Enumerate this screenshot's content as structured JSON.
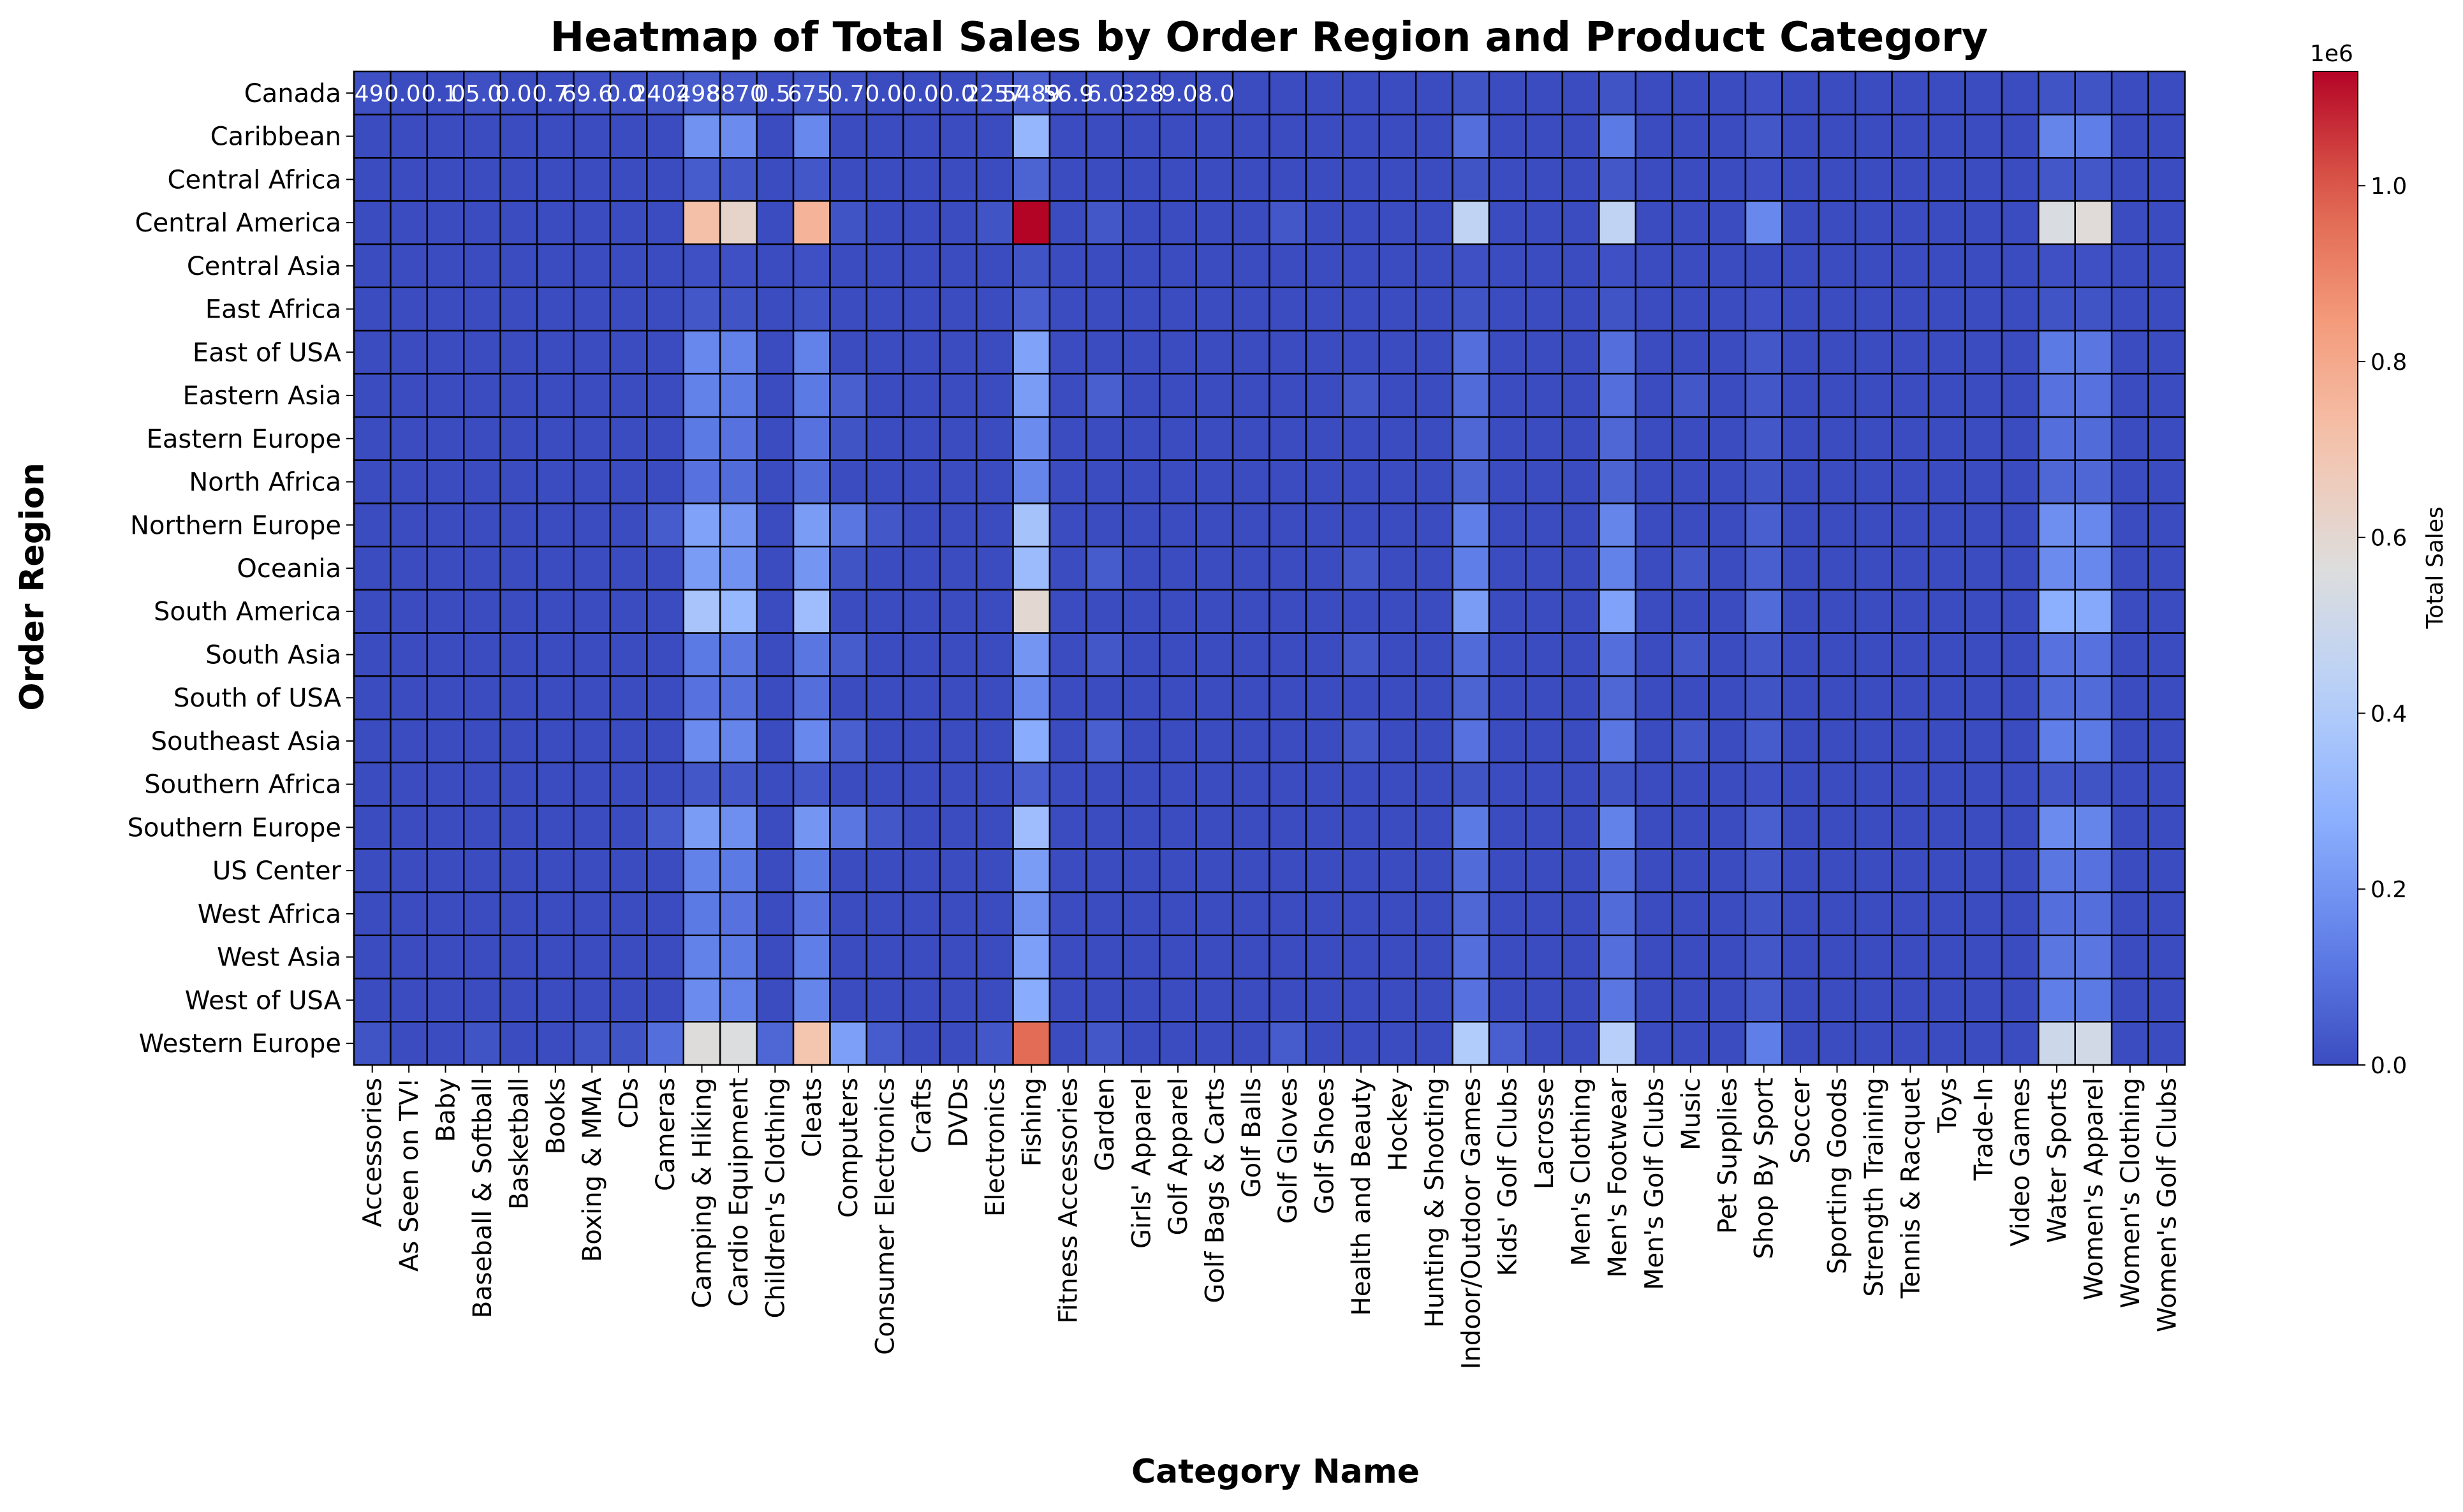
{
  "chart_data": {
    "type": "heatmap",
    "title": "Heatmap of Total Sales by Order Region and Product Category",
    "xlabel": "Category Name",
    "ylabel": "Order Region",
    "colorbar": {
      "label": "Total Sales",
      "offset_label": "1e6",
      "ticks": [
        "0.0",
        "0.2",
        "0.4",
        "0.6",
        "0.8",
        "1.0"
      ],
      "tick_values": [
        0,
        0.2,
        0.4,
        0.6,
        0.8,
        1.0
      ],
      "range": [
        0,
        1.13
      ],
      "colormap": "coolwarm"
    },
    "x_categories": [
      "Accessories",
      "As Seen on  TV!",
      "Baby",
      "Baseball & Softball",
      "Basketball",
      "Books",
      "Boxing & MMA",
      "CDs",
      "Cameras",
      "Camping & Hiking",
      "Cardio Equipment",
      "Children's Clothing",
      "Cleats",
      "Computers",
      "Consumer Electronics",
      "Crafts",
      "DVDs",
      "Electronics",
      "Fishing",
      "Fitness Accessories",
      "Garden",
      "Girls' Apparel",
      "Golf Apparel",
      "Golf Bags & Carts",
      "Golf Balls",
      "Golf Gloves",
      "Golf Shoes",
      "Health and Beauty",
      "Hockey",
      "Hunting & Shooting",
      "Indoor/Outdoor Games",
      "Kids' Golf Clubs",
      "Lacrosse",
      "Men's Clothing",
      "Men's Footwear",
      "Men's Golf Clubs",
      "Music",
      "Pet Supplies",
      "Shop By Sport",
      "Soccer",
      "Sporting Goods",
      "Strength Training",
      "Tennis & Racquet",
      "Toys",
      "Trade-In",
      "Video Games",
      "Water Sports",
      "Women's Apparel",
      "Women's Clothing",
      "Women's Golf Clubs"
    ],
    "y_categories": [
      "Canada",
      "Caribbean",
      "Central Africa",
      "Central America",
      "Central Asia",
      "East Africa",
      "East of USA",
      "Eastern Asia",
      "Eastern Europe",
      "North Africa",
      "Northern Europe",
      "Oceania",
      "South America",
      "South Asia",
      "South of  USA",
      "Southeast Asia",
      "Southern Africa",
      "Southern Europe",
      "US Center",
      "West Africa",
      "West Asia",
      "West of USA",
      "Western Europe"
    ],
    "annotations_row0": [
      ".49",
      "0.0",
      "0.1",
      "05.0",
      "0.0",
      "0.7",
      "69.6",
      "0.0",
      "2402",
      "498",
      "8870",
      "0.5",
      "675",
      "0.7",
      "0.0",
      "0.0",
      "0.0",
      "2257",
      "5489",
      "56.9",
      "6.0",
      "328",
      "9.0",
      "8.0"
    ],
    "values_millions": [
      [
        0.01,
        0.0,
        0.0,
        0.01,
        0.0,
        0.0,
        0.01,
        0.01,
        0.02,
        0.04,
        0.03,
        0.01,
        0.03,
        0.01,
        0.0,
        0.0,
        0.0,
        0.01,
        0.05,
        0.0,
        0.01,
        0.0,
        0.0,
        0.0,
        0.0,
        0.0,
        0.0,
        0.0,
        0.0,
        0.0,
        0.02,
        0.0,
        0.0,
        0.0,
        0.02,
        0.0,
        0.0,
        0.0,
        0.01,
        0.0,
        0.0,
        0.0,
        0.0,
        0.0,
        0.0,
        0.0,
        0.02,
        0.02,
        0.0,
        0.0
      ],
      [
        0.0,
        0.0,
        0.0,
        0.0,
        0.0,
        0.0,
        0.0,
        0.0,
        0.0,
        0.19,
        0.17,
        0.0,
        0.16,
        0.0,
        0.0,
        0.0,
        0.0,
        0.0,
        0.31,
        0.0,
        0.0,
        0.0,
        0.0,
        0.0,
        0.0,
        0.0,
        0.0,
        0.0,
        0.0,
        0.0,
        0.09,
        0.0,
        0.0,
        0.0,
        0.12,
        0.0,
        0.0,
        0.0,
        0.03,
        0.0,
        0.0,
        0.0,
        0.0,
        0.0,
        0.0,
        0.0,
        0.15,
        0.13,
        0.0,
        0.0
      ],
      [
        0.0,
        0.0,
        0.0,
        0.0,
        0.0,
        0.0,
        0.0,
        0.0,
        0.0,
        0.04,
        0.03,
        0.0,
        0.03,
        0.0,
        0.0,
        0.0,
        0.0,
        0.0,
        0.06,
        0.0,
        0.0,
        0.0,
        0.0,
        0.0,
        0.0,
        0.0,
        0.0,
        0.0,
        0.0,
        0.0,
        0.02,
        0.0,
        0.0,
        0.0,
        0.03,
        0.0,
        0.0,
        0.0,
        0.01,
        0.0,
        0.0,
        0.0,
        0.0,
        0.0,
        0.0,
        0.0,
        0.03,
        0.03,
        0.0,
        0.0
      ],
      [
        0.0,
        0.0,
        0.0,
        0.0,
        0.0,
        0.0,
        0.0,
        0.0,
        0.0,
        0.72,
        0.62,
        0.0,
        0.76,
        0.02,
        0.0,
        0.0,
        0.0,
        0.02,
        1.13,
        0.0,
        0.03,
        0.0,
        0.0,
        0.0,
        0.0,
        0.03,
        0.0,
        0.0,
        0.0,
        0.0,
        0.46,
        0.0,
        0.0,
        0.0,
        0.46,
        0.0,
        0.0,
        0.0,
        0.16,
        0.0,
        0.0,
        0.0,
        0.0,
        0.0,
        0.0,
        0.0,
        0.55,
        0.58,
        0.0,
        0.0
      ],
      [
        0.0,
        0.0,
        0.0,
        0.0,
        0.0,
        0.0,
        0.0,
        0.0,
        0.0,
        0.01,
        0.01,
        0.0,
        0.01,
        0.0,
        0.0,
        0.0,
        0.0,
        0.0,
        0.02,
        0.0,
        0.0,
        0.0,
        0.0,
        0.0,
        0.0,
        0.0,
        0.0,
        0.0,
        0.0,
        0.0,
        0.01,
        0.0,
        0.0,
        0.0,
        0.01,
        0.0,
        0.0,
        0.0,
        0.0,
        0.0,
        0.0,
        0.0,
        0.0,
        0.0,
        0.0,
        0.0,
        0.01,
        0.01,
        0.0,
        0.0
      ],
      [
        0.0,
        0.0,
        0.0,
        0.0,
        0.0,
        0.0,
        0.0,
        0.0,
        0.0,
        0.03,
        0.02,
        0.0,
        0.02,
        0.0,
        0.0,
        0.0,
        0.0,
        0.0,
        0.05,
        0.0,
        0.0,
        0.0,
        0.0,
        0.0,
        0.0,
        0.0,
        0.0,
        0.0,
        0.0,
        0.0,
        0.02,
        0.0,
        0.0,
        0.0,
        0.02,
        0.0,
        0.0,
        0.0,
        0.01,
        0.0,
        0.0,
        0.0,
        0.0,
        0.0,
        0.0,
        0.0,
        0.02,
        0.02,
        0.0,
        0.0
      ],
      [
        0.0,
        0.0,
        0.0,
        0.0,
        0.0,
        0.0,
        0.0,
        0.0,
        0.0,
        0.16,
        0.14,
        0.0,
        0.14,
        0.0,
        0.0,
        0.0,
        0.0,
        0.0,
        0.24,
        0.0,
        0.0,
        0.0,
        0.0,
        0.0,
        0.0,
        0.0,
        0.0,
        0.0,
        0.0,
        0.0,
        0.09,
        0.0,
        0.0,
        0.0,
        0.09,
        0.0,
        0.0,
        0.0,
        0.03,
        0.0,
        0.0,
        0.0,
        0.0,
        0.0,
        0.0,
        0.0,
        0.12,
        0.11,
        0.0,
        0.0
      ],
      [
        0.0,
        0.0,
        0.0,
        0.0,
        0.0,
        0.0,
        0.0,
        0.0,
        0.0,
        0.14,
        0.12,
        0.0,
        0.12,
        0.05,
        0.0,
        0.0,
        0.0,
        0.0,
        0.22,
        0.0,
        0.05,
        0.0,
        0.0,
        0.0,
        0.0,
        0.0,
        0.0,
        0.03,
        0.0,
        0.0,
        0.08,
        0.0,
        0.0,
        0.0,
        0.09,
        0.0,
        0.03,
        0.0,
        0.03,
        0.0,
        0.0,
        0.0,
        0.0,
        0.0,
        0.0,
        0.0,
        0.1,
        0.1,
        0.0,
        0.0
      ],
      [
        0.0,
        0.0,
        0.0,
        0.0,
        0.0,
        0.0,
        0.0,
        0.0,
        0.0,
        0.12,
        0.1,
        0.0,
        0.1,
        0.02,
        0.0,
        0.0,
        0.0,
        0.0,
        0.17,
        0.0,
        0.0,
        0.0,
        0.0,
        0.0,
        0.0,
        0.0,
        0.0,
        0.0,
        0.0,
        0.0,
        0.07,
        0.0,
        0.0,
        0.0,
        0.07,
        0.0,
        0.0,
        0.0,
        0.03,
        0.0,
        0.0,
        0.0,
        0.0,
        0.0,
        0.0,
        0.0,
        0.09,
        0.08,
        0.0,
        0.0
      ],
      [
        0.0,
        0.0,
        0.0,
        0.0,
        0.0,
        0.0,
        0.0,
        0.0,
        0.0,
        0.1,
        0.08,
        0.0,
        0.08,
        0.0,
        0.0,
        0.0,
        0.0,
        0.0,
        0.15,
        0.0,
        0.0,
        0.0,
        0.0,
        0.0,
        0.0,
        0.0,
        0.0,
        0.0,
        0.0,
        0.0,
        0.06,
        0.0,
        0.0,
        0.0,
        0.06,
        0.0,
        0.0,
        0.0,
        0.02,
        0.0,
        0.0,
        0.0,
        0.0,
        0.0,
        0.0,
        0.0,
        0.07,
        0.07,
        0.0,
        0.0
      ],
      [
        0.0,
        0.0,
        0.0,
        0.0,
        0.0,
        0.0,
        0.0,
        0.0,
        0.04,
        0.24,
        0.2,
        0.0,
        0.22,
        0.11,
        0.03,
        0.0,
        0.0,
        0.0,
        0.36,
        0.0,
        0.0,
        0.0,
        0.0,
        0.0,
        0.0,
        0.0,
        0.0,
        0.0,
        0.0,
        0.0,
        0.13,
        0.0,
        0.0,
        0.0,
        0.15,
        0.0,
        0.0,
        0.0,
        0.05,
        0.0,
        0.0,
        0.0,
        0.0,
        0.0,
        0.0,
        0.0,
        0.18,
        0.16,
        0.0,
        0.0
      ],
      [
        0.0,
        0.0,
        0.0,
        0.0,
        0.0,
        0.0,
        0.0,
        0.0,
        0.0,
        0.22,
        0.19,
        0.0,
        0.2,
        0.02,
        0.0,
        0.0,
        0.0,
        0.0,
        0.33,
        0.0,
        0.04,
        0.0,
        0.0,
        0.0,
        0.0,
        0.0,
        0.0,
        0.03,
        0.0,
        0.0,
        0.13,
        0.0,
        0.0,
        0.0,
        0.14,
        0.0,
        0.03,
        0.0,
        0.05,
        0.0,
        0.0,
        0.0,
        0.0,
        0.0,
        0.0,
        0.0,
        0.17,
        0.16,
        0.0,
        0.0
      ],
      [
        0.0,
        0.0,
        0.0,
        0.0,
        0.0,
        0.0,
        0.0,
        0.0,
        0.0,
        0.37,
        0.32,
        0.0,
        0.34,
        0.0,
        0.0,
        0.0,
        0.0,
        0.0,
        0.6,
        0.0,
        0.0,
        0.0,
        0.0,
        0.0,
        0.0,
        0.0,
        0.0,
        0.0,
        0.0,
        0.0,
        0.22,
        0.0,
        0.0,
        0.0,
        0.24,
        0.0,
        0.0,
        0.0,
        0.08,
        0.0,
        0.0,
        0.0,
        0.0,
        0.0,
        0.0,
        0.0,
        0.28,
        0.26,
        0.0,
        0.0
      ],
      [
        0.0,
        0.0,
        0.0,
        0.0,
        0.0,
        0.0,
        0.0,
        0.0,
        0.0,
        0.12,
        0.11,
        0.0,
        0.11,
        0.04,
        0.0,
        0.0,
        0.0,
        0.0,
        0.2,
        0.0,
        0.03,
        0.0,
        0.0,
        0.0,
        0.0,
        0.0,
        0.0,
        0.03,
        0.0,
        0.0,
        0.08,
        0.0,
        0.0,
        0.0,
        0.09,
        0.0,
        0.03,
        0.0,
        0.03,
        0.0,
        0.0,
        0.0,
        0.0,
        0.0,
        0.0,
        0.0,
        0.1,
        0.1,
        0.0,
        0.0
      ],
      [
        0.0,
        0.0,
        0.0,
        0.0,
        0.0,
        0.0,
        0.0,
        0.0,
        0.0,
        0.1,
        0.09,
        0.0,
        0.09,
        0.0,
        0.0,
        0.0,
        0.0,
        0.0,
        0.16,
        0.0,
        0.0,
        0.0,
        0.0,
        0.0,
        0.0,
        0.0,
        0.0,
        0.0,
        0.0,
        0.0,
        0.06,
        0.0,
        0.0,
        0.0,
        0.07,
        0.0,
        0.0,
        0.0,
        0.02,
        0.0,
        0.0,
        0.0,
        0.0,
        0.0,
        0.0,
        0.0,
        0.08,
        0.08,
        0.0,
        0.0
      ],
      [
        0.0,
        0.0,
        0.0,
        0.0,
        0.0,
        0.0,
        0.0,
        0.0,
        0.0,
        0.17,
        0.15,
        0.0,
        0.16,
        0.05,
        0.0,
        0.0,
        0.0,
        0.0,
        0.27,
        0.0,
        0.05,
        0.0,
        0.0,
        0.0,
        0.0,
        0.0,
        0.0,
        0.03,
        0.0,
        0.0,
        0.1,
        0.0,
        0.0,
        0.0,
        0.11,
        0.0,
        0.03,
        0.0,
        0.04,
        0.0,
        0.0,
        0.0,
        0.0,
        0.0,
        0.0,
        0.0,
        0.13,
        0.12,
        0.0,
        0.0
      ],
      [
        0.0,
        0.0,
        0.0,
        0.0,
        0.0,
        0.0,
        0.0,
        0.0,
        0.0,
        0.03,
        0.03,
        0.0,
        0.03,
        0.0,
        0.0,
        0.0,
        0.0,
        0.0,
        0.05,
        0.0,
        0.0,
        0.0,
        0.0,
        0.0,
        0.0,
        0.0,
        0.0,
        0.0,
        0.0,
        0.0,
        0.02,
        0.0,
        0.0,
        0.0,
        0.02,
        0.0,
        0.0,
        0.0,
        0.01,
        0.0,
        0.0,
        0.0,
        0.0,
        0.0,
        0.0,
        0.0,
        0.03,
        0.02,
        0.0,
        0.0
      ],
      [
        0.0,
        0.0,
        0.0,
        0.0,
        0.0,
        0.0,
        0.0,
        0.0,
        0.04,
        0.22,
        0.18,
        0.0,
        0.2,
        0.11,
        0.03,
        0.0,
        0.0,
        0.0,
        0.34,
        0.0,
        0.0,
        0.0,
        0.0,
        0.0,
        0.0,
        0.0,
        0.0,
        0.0,
        0.0,
        0.0,
        0.12,
        0.0,
        0.0,
        0.0,
        0.14,
        0.0,
        0.0,
        0.0,
        0.05,
        0.0,
        0.0,
        0.0,
        0.0,
        0.0,
        0.0,
        0.0,
        0.17,
        0.15,
        0.0,
        0.0
      ],
      [
        0.0,
        0.0,
        0.0,
        0.0,
        0.0,
        0.0,
        0.0,
        0.0,
        0.0,
        0.14,
        0.12,
        0.0,
        0.12,
        0.0,
        0.0,
        0.0,
        0.0,
        0.0,
        0.22,
        0.0,
        0.0,
        0.0,
        0.0,
        0.0,
        0.0,
        0.0,
        0.0,
        0.0,
        0.0,
        0.0,
        0.08,
        0.0,
        0.0,
        0.0,
        0.09,
        0.0,
        0.0,
        0.0,
        0.03,
        0.0,
        0.0,
        0.0,
        0.0,
        0.0,
        0.0,
        0.0,
        0.11,
        0.1,
        0.0,
        0.0
      ],
      [
        0.0,
        0.0,
        0.0,
        0.0,
        0.0,
        0.0,
        0.0,
        0.0,
        0.0,
        0.12,
        0.1,
        0.0,
        0.1,
        0.0,
        0.0,
        0.0,
        0.0,
        0.0,
        0.18,
        0.0,
        0.0,
        0.0,
        0.0,
        0.0,
        0.0,
        0.0,
        0.0,
        0.0,
        0.0,
        0.0,
        0.07,
        0.0,
        0.0,
        0.0,
        0.08,
        0.0,
        0.0,
        0.0,
        0.02,
        0.0,
        0.0,
        0.0,
        0.0,
        0.0,
        0.0,
        0.0,
        0.09,
        0.09,
        0.0,
        0.0
      ],
      [
        0.0,
        0.0,
        0.0,
        0.0,
        0.0,
        0.0,
        0.0,
        0.0,
        0.0,
        0.14,
        0.12,
        0.0,
        0.13,
        0.0,
        0.0,
        0.0,
        0.0,
        0.0,
        0.23,
        0.0,
        0.0,
        0.0,
        0.0,
        0.0,
        0.0,
        0.0,
        0.0,
        0.0,
        0.0,
        0.0,
        0.09,
        0.0,
        0.0,
        0.0,
        0.09,
        0.0,
        0.0,
        0.0,
        0.03,
        0.0,
        0.0,
        0.0,
        0.0,
        0.0,
        0.0,
        0.0,
        0.11,
        0.11,
        0.0,
        0.0
      ],
      [
        0.0,
        0.0,
        0.0,
        0.0,
        0.0,
        0.0,
        0.0,
        0.0,
        0.0,
        0.17,
        0.14,
        0.0,
        0.15,
        0.0,
        0.0,
        0.0,
        0.0,
        0.0,
        0.27,
        0.0,
        0.0,
        0.0,
        0.0,
        0.0,
        0.0,
        0.0,
        0.0,
        0.0,
        0.0,
        0.0,
        0.1,
        0.0,
        0.0,
        0.0,
        0.11,
        0.0,
        0.0,
        0.0,
        0.04,
        0.0,
        0.0,
        0.0,
        0.0,
        0.0,
        0.0,
        0.0,
        0.13,
        0.12,
        0.0,
        0.0
      ],
      [
        0.02,
        0.0,
        0.0,
        0.02,
        0.0,
        0.0,
        0.02,
        0.02,
        0.09,
        0.57,
        0.56,
        0.07,
        0.7,
        0.23,
        0.04,
        0.0,
        0.0,
        0.03,
        0.96,
        0.0,
        0.03,
        0.0,
        0.0,
        0.0,
        0.0,
        0.04,
        0.0,
        0.0,
        0.0,
        0.0,
        0.4,
        0.05,
        0.0,
        0.0,
        0.42,
        0.0,
        0.0,
        0.0,
        0.13,
        0.0,
        0.0,
        0.0,
        0.0,
        0.0,
        0.0,
        0.0,
        0.5,
        0.52,
        0.0,
        0.0
      ]
    ]
  }
}
